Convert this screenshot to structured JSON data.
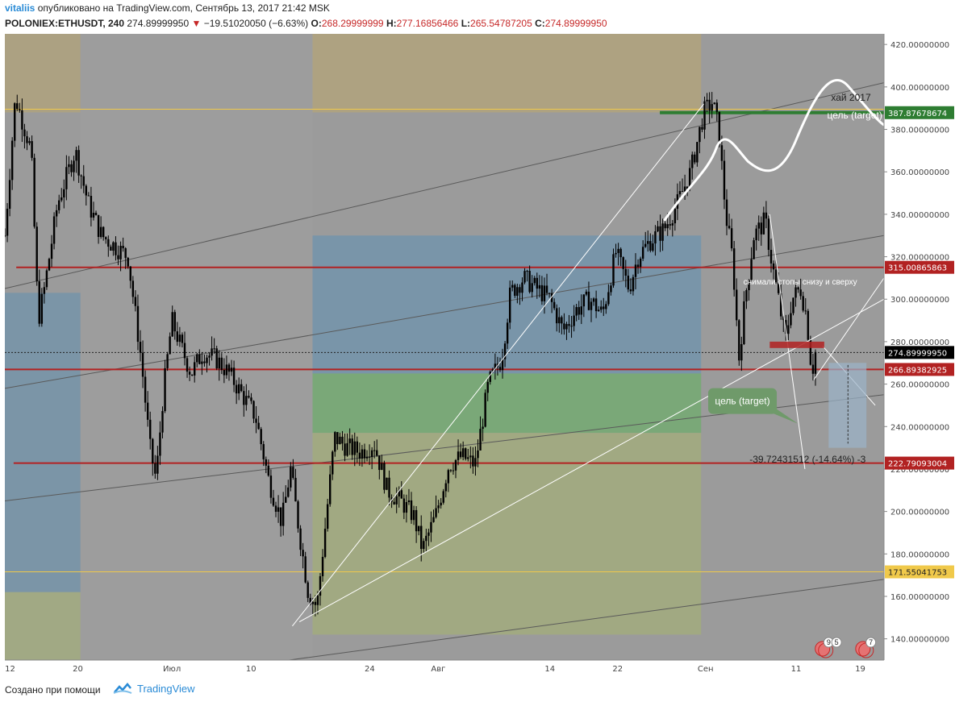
{
  "header": {
    "user": "vitaliis",
    "published": "опубликовано на TradingView.com, Сентябрь 13, 2017 21:42 MSK",
    "symbol": "POLONIEX:ETHUSDT, 240",
    "last": "274.89999950",
    "change": "−19.51020050 (−6.63%)",
    "o_label": "O:",
    "o": "268.29999999",
    "h_label": "H:",
    "h": "277.16856466",
    "l_label": "L:",
    "l": "265.54787205",
    "c_label": "C:",
    "c": "274.89999950"
  },
  "footer": {
    "created": "Создано при помощи",
    "brand": "TradingView"
  },
  "colors": {
    "bg": "#9b9b9b",
    "candle": "#000000",
    "blue_zone": "#6e93ad",
    "gold_zone": "#b4a478",
    "green_zone": "#72ab6f",
    "olive_zone": "#a3ad7c",
    "red_line": "#b22222",
    "gold_line": "#f0c94a",
    "green_line": "#2e7d32"
  },
  "chart_data": {
    "type": "line",
    "title": "",
    "ylim": [
      130,
      425
    ],
    "yticks": [
      140,
      160,
      180,
      200,
      220,
      240,
      260,
      280,
      300,
      320,
      340,
      360,
      380,
      400,
      420
    ],
    "ytick_labels": [
      "140.00000000",
      "160.00000000",
      "180.00000000",
      "200.00000000",
      "220.00000000",
      "240.00000000",
      "260.00000000",
      "280.00000000",
      "300.00000000",
      "320.00000000",
      "340.00000000",
      "360.00000000",
      "380.00000000",
      "400.00000000",
      "420.00000000"
    ],
    "xticks": [
      "12",
      "20",
      "Июл",
      "10",
      "24",
      "Авг",
      "14",
      "22",
      "Сен",
      "11",
      "19"
    ],
    "price_labels": [
      {
        "value": 387.87678674,
        "text": "387.87678674",
        "color": "#2e7d32"
      },
      {
        "value": 315.00865863,
        "text": "315.00865863",
        "color": "#b22222"
      },
      {
        "value": 274.8999995,
        "text": "274.89999950",
        "color": "#000000"
      },
      {
        "value": 266.89382925,
        "text": "266.89382925",
        "color": "#b22222"
      },
      {
        "value": 222.79093004,
        "text": "222.79093004",
        "color": "#b22222"
      },
      {
        "value": 171.55041753,
        "text": "171.55041753",
        "color": "#f0c94a"
      }
    ],
    "close_path": [
      {
        "x": 0.0,
        "y": 330
      },
      {
        "x": 0.012,
        "y": 395
      },
      {
        "x": 0.03,
        "y": 370
      },
      {
        "x": 0.038,
        "y": 290
      },
      {
        "x": 0.045,
        "y": 305
      },
      {
        "x": 0.06,
        "y": 345
      },
      {
        "x": 0.08,
        "y": 370
      },
      {
        "x": 0.095,
        "y": 345
      },
      {
        "x": 0.11,
        "y": 330
      },
      {
        "x": 0.125,
        "y": 325
      },
      {
        "x": 0.14,
        "y": 320
      },
      {
        "x": 0.155,
        "y": 272
      },
      {
        "x": 0.165,
        "y": 230
      },
      {
        "x": 0.172,
        "y": 215
      },
      {
        "x": 0.18,
        "y": 255
      },
      {
        "x": 0.19,
        "y": 290
      },
      {
        "x": 0.2,
        "y": 278
      },
      {
        "x": 0.212,
        "y": 265
      },
      {
        "x": 0.225,
        "y": 275
      },
      {
        "x": 0.24,
        "y": 272
      },
      {
        "x": 0.255,
        "y": 265
      },
      {
        "x": 0.27,
        "y": 255
      },
      {
        "x": 0.285,
        "y": 245
      },
      {
        "x": 0.3,
        "y": 215
      },
      {
        "x": 0.315,
        "y": 195
      },
      {
        "x": 0.325,
        "y": 220
      },
      {
        "x": 0.335,
        "y": 190
      },
      {
        "x": 0.345,
        "y": 162
      },
      {
        "x": 0.355,
        "y": 155
      },
      {
        "x": 0.365,
        "y": 195
      },
      {
        "x": 0.375,
        "y": 235
      },
      {
        "x": 0.39,
        "y": 230
      },
      {
        "x": 0.405,
        "y": 228
      },
      {
        "x": 0.42,
        "y": 232
      },
      {
        "x": 0.435,
        "y": 210
      },
      {
        "x": 0.45,
        "y": 205
      },
      {
        "x": 0.465,
        "y": 198
      },
      {
        "x": 0.475,
        "y": 182
      },
      {
        "x": 0.49,
        "y": 198
      },
      {
        "x": 0.505,
        "y": 222
      },
      {
        "x": 0.52,
        "y": 226
      },
      {
        "x": 0.535,
        "y": 222
      },
      {
        "x": 0.55,
        "y": 260
      },
      {
        "x": 0.565,
        "y": 272
      },
      {
        "x": 0.575,
        "y": 303
      },
      {
        "x": 0.59,
        "y": 310
      },
      {
        "x": 0.605,
        "y": 305
      },
      {
        "x": 0.62,
        "y": 300
      },
      {
        "x": 0.635,
        "y": 285
      },
      {
        "x": 0.65,
        "y": 295
      },
      {
        "x": 0.665,
        "y": 300
      },
      {
        "x": 0.68,
        "y": 293
      },
      {
        "x": 0.695,
        "y": 322
      },
      {
        "x": 0.71,
        "y": 305
      },
      {
        "x": 0.72,
        "y": 320
      },
      {
        "x": 0.735,
        "y": 328
      },
      {
        "x": 0.75,
        "y": 333
      },
      {
        "x": 0.765,
        "y": 345
      },
      {
        "x": 0.78,
        "y": 360
      },
      {
        "x": 0.795,
        "y": 388
      },
      {
        "x": 0.805,
        "y": 393
      },
      {
        "x": 0.812,
        "y": 380
      },
      {
        "x": 0.82,
        "y": 340
      },
      {
        "x": 0.828,
        "y": 318
      },
      {
        "x": 0.835,
        "y": 272
      },
      {
        "x": 0.842,
        "y": 300
      },
      {
        "x": 0.852,
        "y": 330
      },
      {
        "x": 0.865,
        "y": 337
      },
      {
        "x": 0.872,
        "y": 318
      },
      {
        "x": 0.88,
        "y": 300
      },
      {
        "x": 0.888,
        "y": 280
      },
      {
        "x": 0.895,
        "y": 300
      },
      {
        "x": 0.905,
        "y": 305
      },
      {
        "x": 0.912,
        "y": 292
      },
      {
        "x": 0.918,
        "y": 265
      },
      {
        "x": 0.922,
        "y": 275
      }
    ],
    "annotations": [
      {
        "text": "хай 2017",
        "value": 395
      },
      {
        "text": "цель (target)",
        "value": 387
      },
      {
        "text": "цель (target)",
        "value": 252
      },
      {
        "text": "снимали стопы снизу и сверху",
        "value": 307
      },
      {
        "text": "-39.72431512 (-14.64%) -3",
        "value": 223
      }
    ],
    "events": [
      {
        "text": "9"
      },
      {
        "text": "5"
      },
      {
        "text": "7"
      }
    ]
  }
}
